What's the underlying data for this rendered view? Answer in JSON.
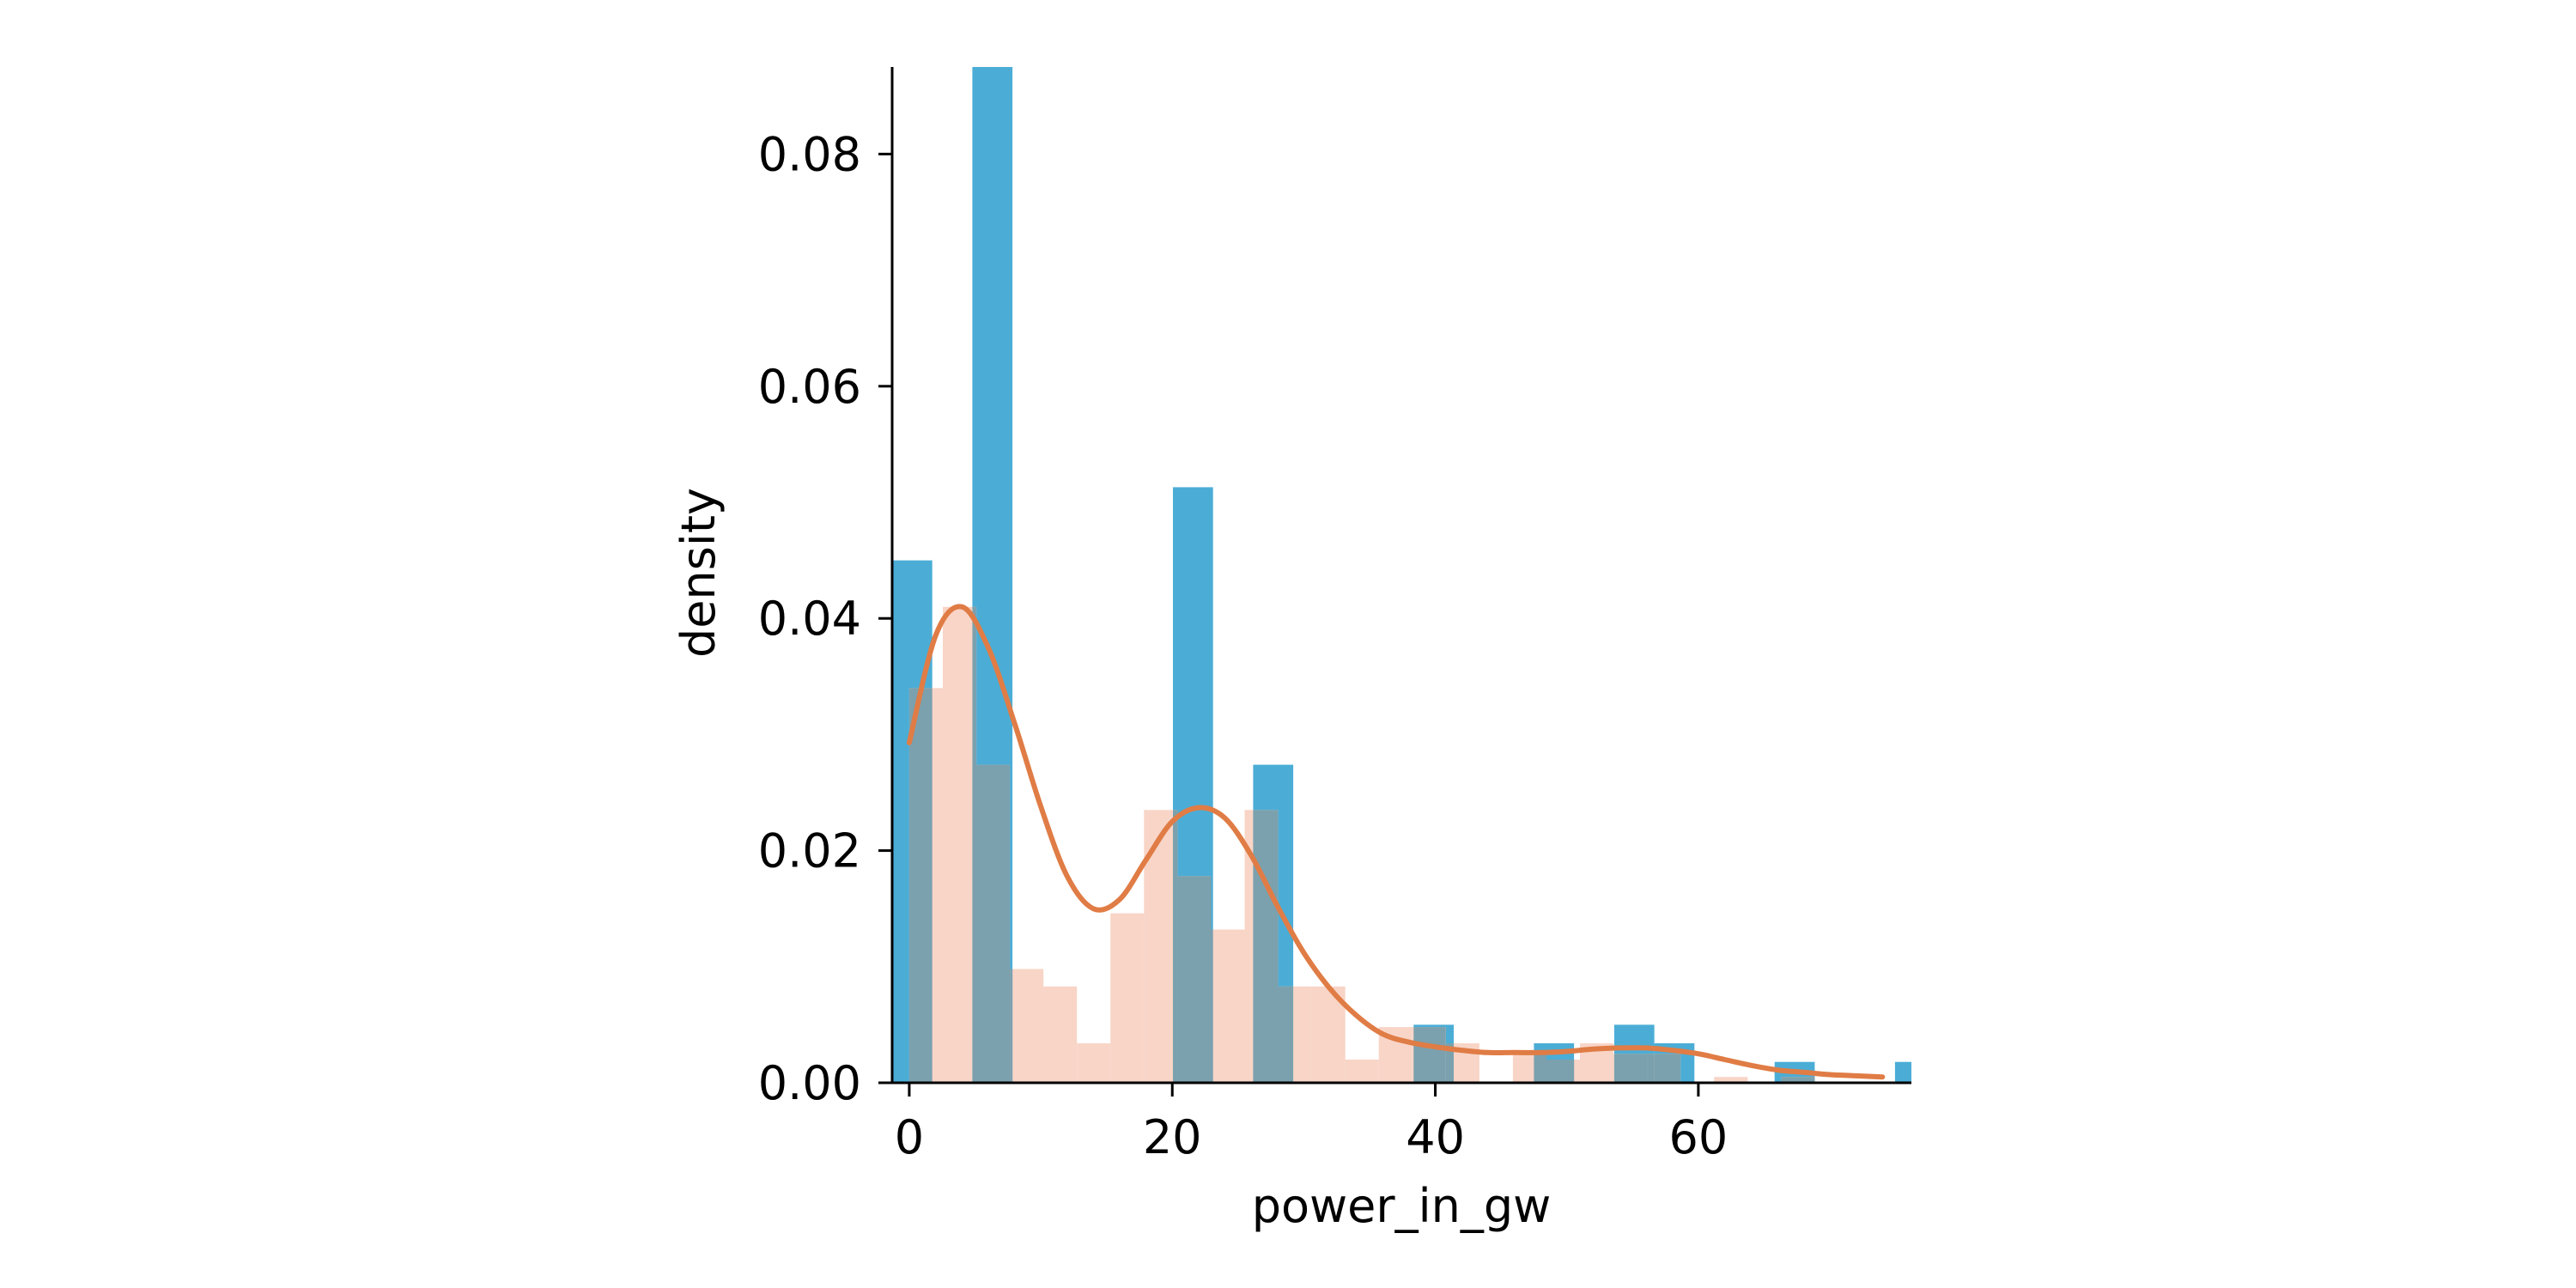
{
  "chart_data": {
    "type": "bar",
    "title": "",
    "xlabel": "power_in_gw",
    "ylabel": "density",
    "xlim": [
      -1.3,
      76.2
    ],
    "ylim": [
      0,
      0.0875
    ],
    "x_ticks": [
      0,
      20,
      40,
      60
    ],
    "x_tick_labels": [
      "0",
      "20",
      "40",
      "60"
    ],
    "y_ticks": [
      0.0,
      0.02,
      0.04,
      0.06,
      0.08
    ],
    "y_tick_labels": [
      "0.00",
      "0.02",
      "0.04",
      "0.06",
      "0.08"
    ],
    "grid": false,
    "legend": "none",
    "series": [
      {
        "kind": "histogram",
        "color": "#4badd6",
        "bin_width": 3.05,
        "bin_starts": [
          -1.3,
          1.75,
          4.8,
          7.85,
          10.9,
          13.95,
          17.0,
          20.05,
          23.1,
          26.15,
          29.2,
          32.25,
          35.3,
          38.35,
          41.4,
          44.45,
          47.5,
          50.55,
          53.6,
          56.65,
          59.7,
          62.75,
          65.8,
          68.85,
          71.9,
          74.95
        ],
        "values": [
          0.045,
          0.0,
          0.0875,
          0.0,
          0.0,
          0.0,
          0.0,
          0.0513,
          0.0,
          0.0274,
          0.0,
          0.0,
          0.0,
          0.005,
          0.0,
          0.0,
          0.0034,
          0.0,
          0.005,
          0.0034,
          0.0,
          0.0,
          0.0018,
          0.0,
          0.0,
          0.0018
        ]
      },
      {
        "kind": "step-histogram",
        "color": "#f8d5c7",
        "bin_width": 2.55,
        "bin_starts": [
          0.0,
          2.55,
          5.1,
          7.65,
          10.2,
          12.75,
          15.3,
          17.85,
          20.4,
          22.95,
          25.5,
          28.05,
          30.6,
          33.15,
          35.7,
          38.25,
          40.8,
          43.35,
          45.9,
          48.45,
          51.0,
          53.55,
          56.1,
          58.65,
          61.2,
          63.75,
          66.3,
          68.85,
          71.4,
          73.95
        ],
        "values": [
          0.034,
          0.041,
          0.0274,
          0.0098,
          0.0083,
          0.0034,
          0.0146,
          0.0235,
          0.0178,
          0.0132,
          0.0235,
          0.0083,
          0.0083,
          0.002,
          0.0048,
          0.0048,
          0.0034,
          0.0,
          0.0025,
          0.002,
          0.0034,
          0.0025,
          0.0025,
          0.0,
          0.0005,
          0.0,
          0.0005,
          0.0,
          0.0,
          0.0
        ]
      },
      {
        "kind": "kde",
        "color": "#e07c45",
        "x": [
          0,
          2,
          4,
          6,
          8,
          10,
          12,
          14,
          16,
          18,
          20,
          22,
          24,
          26,
          28,
          30,
          32,
          34,
          36,
          38,
          40,
          42,
          44,
          46,
          48,
          50,
          52,
          54,
          56,
          58,
          60,
          62,
          64,
          66,
          68,
          70,
          72,
          74
        ],
        "y": [
          0.0293,
          0.0385,
          0.041,
          0.0375,
          0.031,
          0.0238,
          0.0178,
          0.015,
          0.0158,
          0.0192,
          0.0225,
          0.0237,
          0.0228,
          0.0196,
          0.0152,
          0.0112,
          0.0081,
          0.0058,
          0.0042,
          0.0035,
          0.0031,
          0.0028,
          0.0026,
          0.0026,
          0.0026,
          0.0027,
          0.0029,
          0.003,
          0.003,
          0.0028,
          0.0025,
          0.002,
          0.0015,
          0.0011,
          0.0009,
          0.0007,
          0.0006,
          0.0005
        ]
      }
    ]
  }
}
